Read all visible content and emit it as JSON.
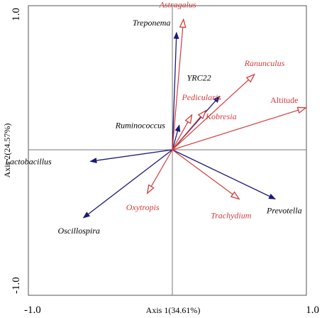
{
  "chart_data": {
    "type": "biplot",
    "xlabel": "Axis 1(34.61%)",
    "ylabel": "Axis 2(24.57%)",
    "xlim": [
      -1.0,
      1.0
    ],
    "ylim": [
      -1.0,
      1.0
    ],
    "x_tick_labels": [
      "-1.0",
      "1.0"
    ],
    "y_tick_labels": [
      "1.0",
      "-1.0"
    ],
    "reference_lines": {
      "x": 0,
      "y": 0
    },
    "colors": {
      "species": "#1a1a7a",
      "environment": "#d63a3a",
      "frame": "#555555",
      "reference": "#777777"
    },
    "series": [
      {
        "group": "species",
        "arrow_style": "filled",
        "vectors": [
          {
            "name": "Treponema",
            "x": 0.03,
            "y": 0.81
          },
          {
            "name": "YRC22",
            "x": 0.34,
            "y": 0.37
          },
          {
            "name": "Ruminococcus",
            "x": 0.05,
            "y": 0.17
          },
          {
            "name": "Lactobacillus",
            "x": -0.59,
            "y": -0.08
          },
          {
            "name": "Oscillospira",
            "x": -0.64,
            "y": -0.47
          },
          {
            "name": "Prevotella",
            "x": 0.74,
            "y": -0.34
          }
        ]
      },
      {
        "group": "environment",
        "arrow_style": "open",
        "vectors": [
          {
            "name": "Astragalus",
            "x": 0.08,
            "y": 0.9
          },
          {
            "name": "Ranunculus",
            "x": 0.59,
            "y": 0.52
          },
          {
            "name": "Altitude",
            "x": 0.96,
            "y": 0.29
          },
          {
            "name": "Pedicularis",
            "x": 0.14,
            "y": 0.24
          },
          {
            "name": "Kobresia",
            "x": 0.24,
            "y": 0.27
          },
          {
            "name": "Oxytropis",
            "x": -0.18,
            "y": -0.3
          },
          {
            "name": "Trachydium",
            "x": 0.48,
            "y": -0.34
          }
        ]
      }
    ]
  }
}
